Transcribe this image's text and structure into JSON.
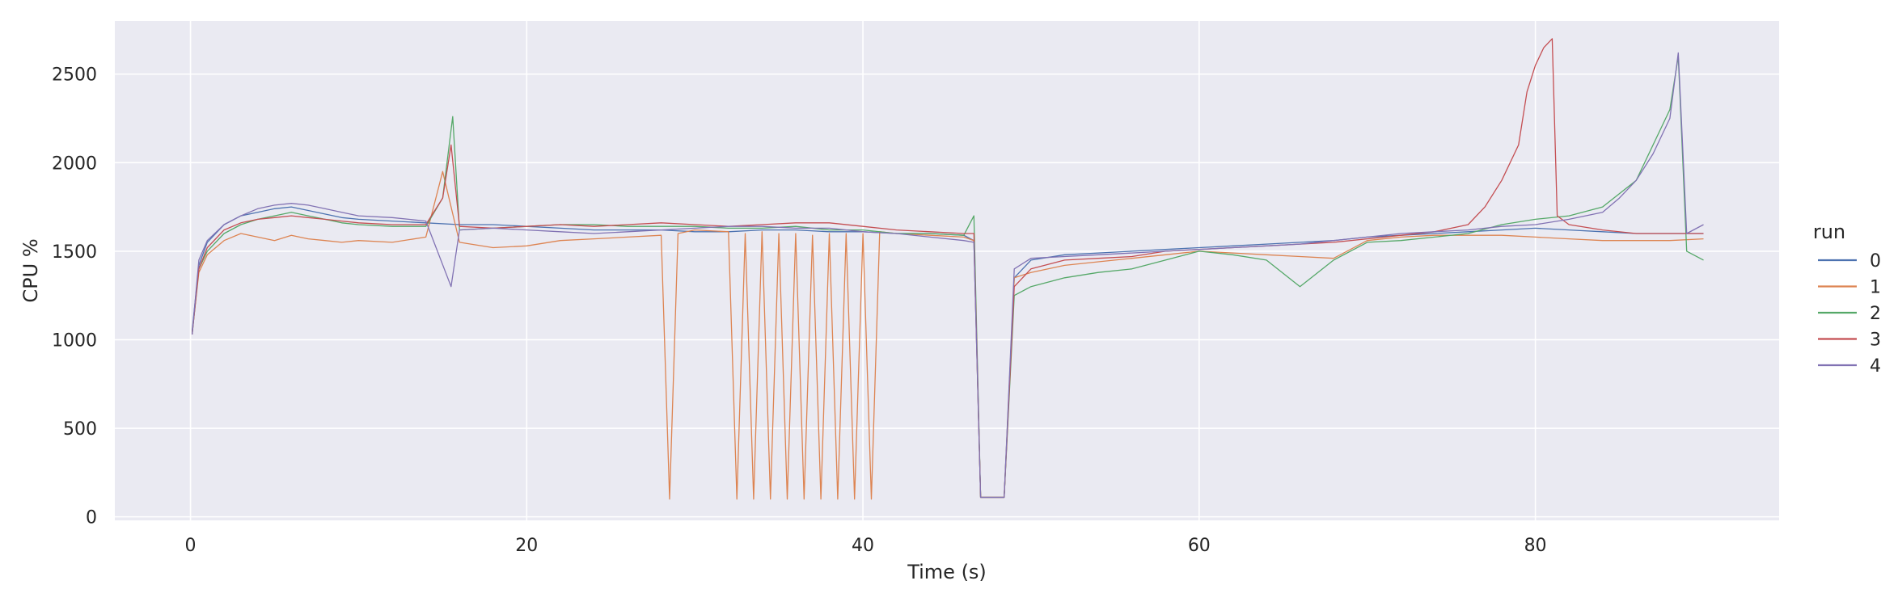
{
  "chart_data": {
    "type": "line",
    "title": "",
    "xlabel": "Time (s)",
    "ylabel": "CPU %",
    "xlim": [
      -4.5,
      94.5
    ],
    "ylim": [
      -20,
      2800
    ],
    "xticks": [
      0,
      20,
      40,
      60,
      80
    ],
    "yticks": [
      0,
      500,
      1000,
      1500,
      2000,
      2500
    ],
    "grid": true,
    "legend": {
      "title": "run",
      "placement": "right"
    },
    "colors": [
      "#4c72b0",
      "#dd8452",
      "#55a868",
      "#c44e52",
      "#8172b3"
    ],
    "series": [
      {
        "name": "0",
        "x": [
          0.1,
          0.5,
          1,
          2,
          3,
          4,
          5,
          6,
          7,
          8,
          9,
          10,
          12,
          14,
          16,
          18,
          20,
          22,
          24,
          26,
          28,
          30,
          32,
          34,
          36,
          38,
          40,
          42,
          44,
          46,
          46.6,
          47,
          47.5,
          48,
          48.4,
          49,
          50,
          52,
          54,
          56,
          58,
          60,
          62,
          64,
          66,
          68,
          70,
          72,
          74,
          76,
          78,
          80,
          82,
          84,
          86,
          88,
          90
        ],
        "values": [
          1050,
          1420,
          1550,
          1650,
          1700,
          1720,
          1740,
          1750,
          1730,
          1710,
          1690,
          1680,
          1670,
          1660,
          1650,
          1650,
          1640,
          1630,
          1620,
          1620,
          1620,
          1610,
          1610,
          1620,
          1620,
          1610,
          1610,
          1600,
          1600,
          1590,
          1560,
          110,
          110,
          110,
          110,
          1350,
          1450,
          1480,
          1490,
          1500,
          1510,
          1520,
          1530,
          1540,
          1550,
          1560,
          1580,
          1590,
          1600,
          1610,
          1620,
          1630,
          1620,
          1610,
          1600,
          1600,
          1600
        ]
      },
      {
        "name": "1",
        "x": [
          0.1,
          0.5,
          1,
          2,
          3,
          4,
          5,
          6,
          7,
          8,
          9,
          10,
          12,
          14,
          15,
          16,
          18,
          20,
          22,
          24,
          26,
          28,
          28.5,
          29,
          30,
          32,
          32.5,
          33,
          33.5,
          34,
          34.5,
          35,
          35.5,
          36,
          36.5,
          37,
          37.5,
          38,
          38.5,
          39,
          39.5,
          40,
          40.5,
          41,
          42,
          44,
          46,
          46.6,
          47,
          47.5,
          48,
          48.4,
          49,
          50,
          52,
          54,
          56,
          58,
          60,
          62,
          64,
          66,
          68,
          70,
          72,
          74,
          76,
          78,
          80,
          82,
          84,
          86,
          88,
          90
        ],
        "values": [
          1040,
          1380,
          1480,
          1560,
          1600,
          1580,
          1560,
          1590,
          1570,
          1560,
          1550,
          1560,
          1550,
          1580,
          1950,
          1550,
          1520,
          1530,
          1560,
          1570,
          1580,
          1590,
          100,
          1600,
          1620,
          1610,
          100,
          1600,
          100,
          1610,
          100,
          1600,
          100,
          1600,
          100,
          1590,
          100,
          1600,
          100,
          1600,
          100,
          1600,
          100,
          1610,
          1600,
          1590,
          1580,
          1560,
          110,
          110,
          110,
          110,
          1350,
          1380,
          1420,
          1440,
          1460,
          1480,
          1500,
          1490,
          1480,
          1470,
          1460,
          1560,
          1580,
          1590,
          1590,
          1590,
          1580,
          1570,
          1560,
          1560,
          1560,
          1570
        ]
      },
      {
        "name": "2",
        "x": [
          0.1,
          0.5,
          1,
          2,
          3,
          4,
          5,
          6,
          7,
          8,
          9,
          10,
          12,
          14,
          15,
          15.6,
          16,
          18,
          20,
          22,
          24,
          26,
          28,
          30,
          32,
          34,
          36,
          38,
          40,
          42,
          44,
          46,
          46.6,
          47,
          47.5,
          48,
          48.4,
          49,
          50,
          52,
          54,
          56,
          58,
          60,
          62,
          64,
          66,
          68,
          70,
          72,
          74,
          76,
          78,
          80,
          82,
          84,
          86,
          87,
          88,
          88.5,
          89,
          90
        ],
        "values": [
          1030,
          1400,
          1500,
          1600,
          1650,
          1680,
          1700,
          1720,
          1700,
          1680,
          1660,
          1650,
          1640,
          1640,
          1800,
          2260,
          1620,
          1630,
          1640,
          1650,
          1650,
          1640,
          1640,
          1640,
          1630,
          1630,
          1640,
          1620,
          1620,
          1600,
          1600,
          1590,
          1700,
          110,
          110,
          110,
          110,
          1250,
          1300,
          1350,
          1380,
          1400,
          1450,
          1500,
          1480,
          1450,
          1300,
          1450,
          1550,
          1560,
          1580,
          1600,
          1650,
          1680,
          1700,
          1750,
          1900,
          2100,
          2300,
          2600,
          1500,
          1450
        ]
      },
      {
        "name": "3",
        "x": [
          0.1,
          0.5,
          1,
          2,
          3,
          4,
          5,
          6,
          7,
          8,
          9,
          10,
          12,
          14,
          15,
          15.5,
          16,
          18,
          20,
          22,
          24,
          26,
          28,
          30,
          32,
          34,
          36,
          38,
          40,
          42,
          44,
          46,
          46.6,
          47,
          47.5,
          48,
          48.4,
          49,
          50,
          52,
          54,
          56,
          58,
          60,
          62,
          64,
          66,
          68,
          70,
          72,
          74,
          76,
          77,
          78,
          79,
          79.5,
          80,
          80.5,
          81,
          81.3,
          82,
          84,
          86,
          88,
          90
        ],
        "values": [
          1030,
          1400,
          1520,
          1620,
          1660,
          1680,
          1690,
          1700,
          1690,
          1680,
          1670,
          1660,
          1650,
          1650,
          1800,
          2100,
          1640,
          1630,
          1640,
          1650,
          1640,
          1650,
          1660,
          1650,
          1640,
          1650,
          1660,
          1660,
          1640,
          1620,
          1610,
          1600,
          1600,
          110,
          110,
          110,
          110,
          1300,
          1400,
          1450,
          1460,
          1470,
          1500,
          1510,
          1520,
          1530,
          1540,
          1550,
          1570,
          1590,
          1610,
          1650,
          1750,
          1900,
          2100,
          2400,
          2550,
          2650,
          2700,
          1700,
          1650,
          1620,
          1600,
          1600,
          1600
        ]
      },
      {
        "name": "4",
        "x": [
          0.1,
          0.5,
          1,
          2,
          3,
          4,
          5,
          6,
          7,
          8,
          9,
          10,
          12,
          14,
          15.5,
          16,
          18,
          20,
          22,
          24,
          26,
          28,
          30,
          32,
          34,
          36,
          38,
          40,
          42,
          44,
          46,
          46.6,
          47,
          47.5,
          48,
          48.4,
          49,
          50,
          52,
          54,
          56,
          58,
          60,
          62,
          64,
          66,
          68,
          70,
          72,
          74,
          76,
          78,
          80,
          82,
          84,
          85,
          86,
          87,
          88,
          88.5,
          89,
          90
        ],
        "values": [
          1030,
          1450,
          1560,
          1650,
          1700,
          1740,
          1760,
          1770,
          1760,
          1740,
          1720,
          1700,
          1690,
          1670,
          1300,
          1620,
          1630,
          1620,
          1610,
          1600,
          1610,
          1620,
          1630,
          1640,
          1640,
          1630,
          1630,
          1610,
          1600,
          1580,
          1560,
          1550,
          110,
          110,
          110,
          110,
          1400,
          1460,
          1470,
          1480,
          1490,
          1500,
          1510,
          1520,
          1530,
          1540,
          1560,
          1580,
          1600,
          1610,
          1620,
          1640,
          1650,
          1680,
          1720,
          1800,
          1900,
          2050,
          2250,
          2620,
          1600,
          1650
        ]
      }
    ]
  }
}
